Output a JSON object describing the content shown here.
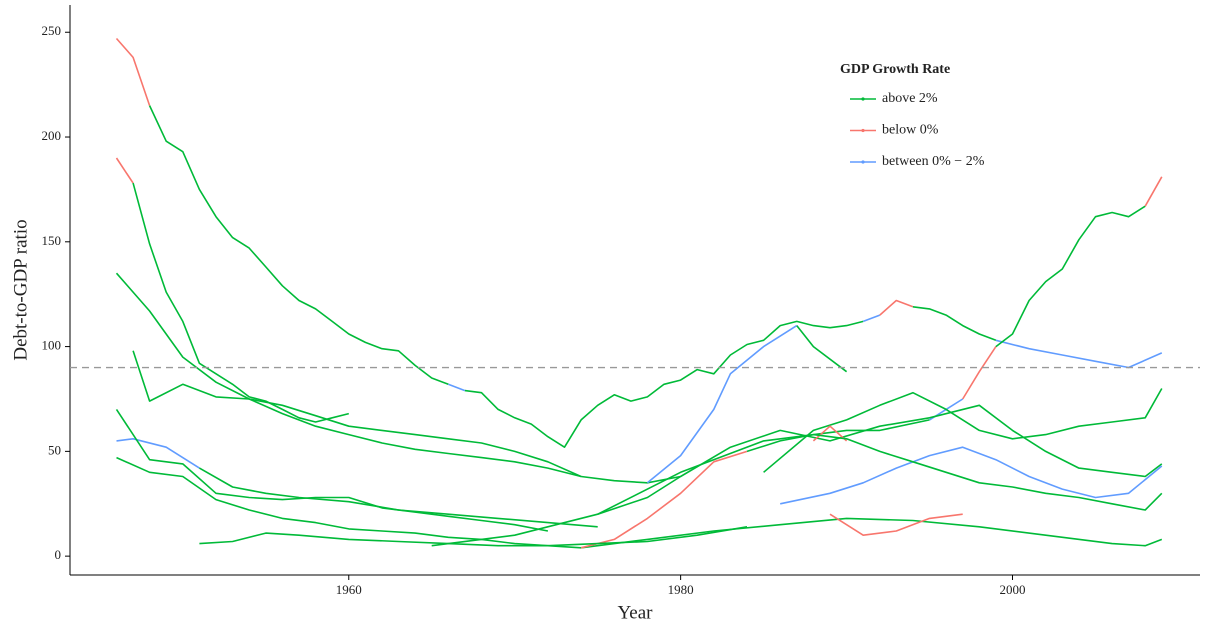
{
  "chart_data": {
    "type": "line",
    "x_label": "Year",
    "y_label": "Debt-to-GDP ratio",
    "legend_title": "GDP Growth Rate",
    "xlim": [
      1943.2,
      2011.3
    ],
    "ylim": [
      -9,
      263
    ],
    "xticks": [
      1960,
      1980,
      2000
    ],
    "yticks": [
      0,
      50,
      100,
      150,
      200,
      250
    ],
    "hline": 90,
    "series": [
      {
        "name": "above 2%",
        "color": "#00BA38"
      },
      {
        "name": "below 0%",
        "color": "#F8766D"
      },
      {
        "name": "between 0% − 2%",
        "color": "#619CFF"
      }
    ],
    "lines": [
      {
        "series": 1,
        "x": [
          1946,
          1947,
          1948
        ],
        "values": [
          247,
          238,
          215
        ]
      },
      {
        "series": 0,
        "x": [
          1948,
          1949,
          1950,
          1951,
          1952,
          1953,
          1954,
          1955,
          1956,
          1957,
          1958,
          1959,
          1960,
          1961,
          1962,
          1963,
          1964,
          1965,
          1966
        ],
        "values": [
          215,
          198,
          193,
          175,
          162,
          152,
          147,
          138,
          129,
          122,
          118,
          112,
          106,
          102,
          99,
          98,
          91,
          85,
          82
        ]
      },
      {
        "series": 2,
        "x": [
          1966,
          1967
        ],
        "values": [
          82,
          79
        ]
      },
      {
        "series": 0,
        "x": [
          1967,
          1968,
          1969,
          1970,
          1971,
          1972,
          1973,
          1974,
          1975,
          1976,
          1977,
          1978,
          1979,
          1980,
          1981,
          1982,
          1983,
          1984,
          1985,
          1986,
          1987,
          1988,
          1989,
          1990,
          1991
        ],
        "values": [
          79,
          78,
          70,
          66,
          63,
          57,
          52,
          65,
          72,
          77,
          74,
          76,
          82,
          84,
          89,
          87,
          96,
          101,
          103,
          110,
          112,
          110,
          109,
          110,
          112
        ]
      },
      {
        "series": 2,
        "x": [
          1991,
          1992
        ],
        "values": [
          112,
          115
        ]
      },
      {
        "series": 1,
        "x": [
          1992,
          1993,
          1994
        ],
        "values": [
          115,
          122,
          119
        ]
      },
      {
        "series": 0,
        "x": [
          1994,
          1995,
          1996,
          1997,
          1998,
          1999
        ],
        "values": [
          119,
          118,
          115,
          110,
          106,
          103
        ]
      },
      {
        "series": 2,
        "x": [
          1999,
          2001,
          2003,
          2005,
          2007,
          2009
        ],
        "values": [
          103,
          99,
          96,
          93,
          90,
          97
        ]
      },
      {
        "series": 0,
        "x": [
          1965,
          1970,
          1975,
          1980,
          1985,
          1990,
          1992,
          1995
        ],
        "values": [
          5,
          10,
          20,
          40,
          55,
          60,
          60,
          65
        ]
      },
      {
        "series": 2,
        "x": [
          1995,
          1996,
          1997
        ],
        "values": [
          65,
          70,
          75
        ]
      },
      {
        "series": 1,
        "x": [
          1997,
          1998,
          1999
        ],
        "values": [
          75,
          88,
          100
        ]
      },
      {
        "series": 0,
        "x": [
          1999,
          2000,
          2001,
          2002,
          2003,
          2004,
          2005,
          2006,
          2007,
          2008
        ],
        "values": [
          100,
          106,
          122,
          131,
          137,
          151,
          162,
          164,
          162,
          167
        ]
      },
      {
        "series": 1,
        "x": [
          2008,
          2009
        ],
        "values": [
          167,
          181
        ]
      },
      {
        "series": 1,
        "x": [
          1946,
          1947
        ],
        "values": [
          190,
          178
        ]
      },
      {
        "series": 0,
        "x": [
          1947,
          1948,
          1949,
          1950,
          1951,
          1952,
          1953,
          1954,
          1955,
          1956,
          1957,
          1958,
          1959,
          1960
        ],
        "values": [
          178,
          149,
          126,
          112,
          92,
          87,
          82,
          76,
          74,
          70,
          66,
          64,
          66,
          68
        ]
      },
      {
        "series": 0,
        "x": [
          1946,
          1948,
          1950,
          1952,
          1954,
          1956,
          1958,
          1960,
          1962,
          1964,
          1966,
          1968,
          1970,
          1972,
          1974,
          1976,
          1978,
          1980
        ],
        "values": [
          135,
          117,
          95,
          83,
          75,
          68,
          62,
          58,
          54,
          51,
          49,
          47,
          45,
          42,
          38,
          36,
          35,
          38
        ]
      },
      {
        "series": 2,
        "x": [
          1978,
          1980,
          1982,
          1983,
          1985,
          1987
        ],
        "values": [
          35,
          48,
          70,
          87,
          100,
          110
        ]
      },
      {
        "series": 0,
        "x": [
          1987,
          1988,
          1990
        ],
        "values": [
          110,
          100,
          88
        ]
      },
      {
        "series": 0,
        "x": [
          1947,
          1948,
          1950,
          1952,
          1954,
          1956,
          1958,
          1960,
          1962,
          1964,
          1966,
          1968,
          1970,
          1972,
          1974
        ],
        "values": [
          98,
          74,
          82,
          76,
          75,
          72,
          67,
          62,
          60,
          58,
          56,
          54,
          50,
          45,
          38
        ]
      },
      {
        "series": 2,
        "x": [
          1946,
          1947,
          1949,
          1951
        ],
        "values": [
          55,
          56,
          52,
          42
        ]
      },
      {
        "series": 0,
        "x": [
          1951,
          1953,
          1955,
          1957,
          1960,
          1963,
          1966,
          1969,
          1972,
          1975
        ],
        "values": [
          42,
          33,
          30,
          28,
          26,
          22,
          20,
          18,
          16,
          14
        ]
      },
      {
        "series": 0,
        "x": [
          1946,
          1948,
          1950,
          1952,
          1954,
          1956,
          1958,
          1960,
          1962,
          1964,
          1966,
          1968,
          1970,
          1972
        ],
        "values": [
          70,
          46,
          44,
          30,
          28,
          27,
          28,
          28,
          23,
          21,
          19,
          17,
          15,
          12
        ]
      },
      {
        "series": 0,
        "x": [
          1946,
          1948,
          1950,
          1952,
          1954,
          1956,
          1958,
          1960,
          1962,
          1964,
          1966,
          1968,
          1970,
          1972,
          1974
        ],
        "values": [
          47,
          40,
          38,
          27,
          22,
          18,
          16,
          13,
          12,
          11,
          9,
          8,
          6,
          5,
          4
        ]
      },
      {
        "series": 0,
        "x": [
          1974,
          1978,
          1982,
          1986,
          1990,
          1994,
          1998,
          2002,
          2006,
          2008,
          2009
        ],
        "values": [
          4,
          8,
          12,
          15,
          18,
          17,
          14,
          10,
          6,
          5,
          8
        ]
      },
      {
        "series": 0,
        "x": [
          1975,
          1978,
          1980,
          1983,
          1986,
          1989,
          1992,
          1995,
          1998,
          2000,
          2002,
          2004,
          2006,
          2008,
          2009
        ],
        "values": [
          20,
          28,
          38,
          52,
          60,
          55,
          62,
          66,
          72,
          60,
          50,
          42,
          40,
          38,
          44
        ]
      },
      {
        "series": 0,
        "x": [
          1985,
          1988,
          1990,
          1992,
          1994,
          1996,
          1998,
          2000,
          2002,
          2004,
          2006,
          2008,
          2009
        ],
        "values": [
          40,
          60,
          65,
          72,
          78,
          70,
          60,
          56,
          58,
          62,
          64,
          66,
          80
        ]
      },
      {
        "series": 1,
        "x": [
          1988,
          1989,
          1990
        ],
        "values": [
          55,
          62,
          55
        ]
      },
      {
        "series": 2,
        "x": [
          1986,
          1989,
          1991,
          1993,
          1995,
          1997,
          1999,
          2001,
          2003,
          2005,
          2007,
          2009
        ],
        "values": [
          25,
          30,
          35,
          42,
          48,
          52,
          46,
          38,
          32,
          28,
          30,
          43
        ]
      },
      {
        "series": 1,
        "x": [
          1974,
          1976,
          1978,
          1980,
          1982,
          1984
        ],
        "values": [
          4,
          8,
          18,
          30,
          45,
          50
        ]
      },
      {
        "series": 0,
        "x": [
          1984,
          1986,
          1988,
          1990,
          1992,
          1994,
          1996,
          1998,
          2000,
          2002,
          2004,
          2006,
          2008,
          2009
        ],
        "values": [
          50,
          55,
          58,
          56,
          50,
          45,
          40,
          35,
          33,
          30,
          28,
          25,
          22,
          30
        ]
      },
      {
        "series": 0,
        "x": [
          1951,
          1953,
          1955,
          1957,
          1960,
          1963,
          1966,
          1969,
          1972,
          1975,
          1978,
          1981,
          1984
        ],
        "values": [
          6,
          7,
          11,
          10,
          8,
          7,
          6,
          5,
          5,
          6,
          7,
          10,
          14
        ]
      },
      {
        "series": 1,
        "x": [
          1989,
          1991,
          1993,
          1995,
          1997
        ],
        "values": [
          20,
          10,
          12,
          18,
          20
        ]
      }
    ]
  }
}
